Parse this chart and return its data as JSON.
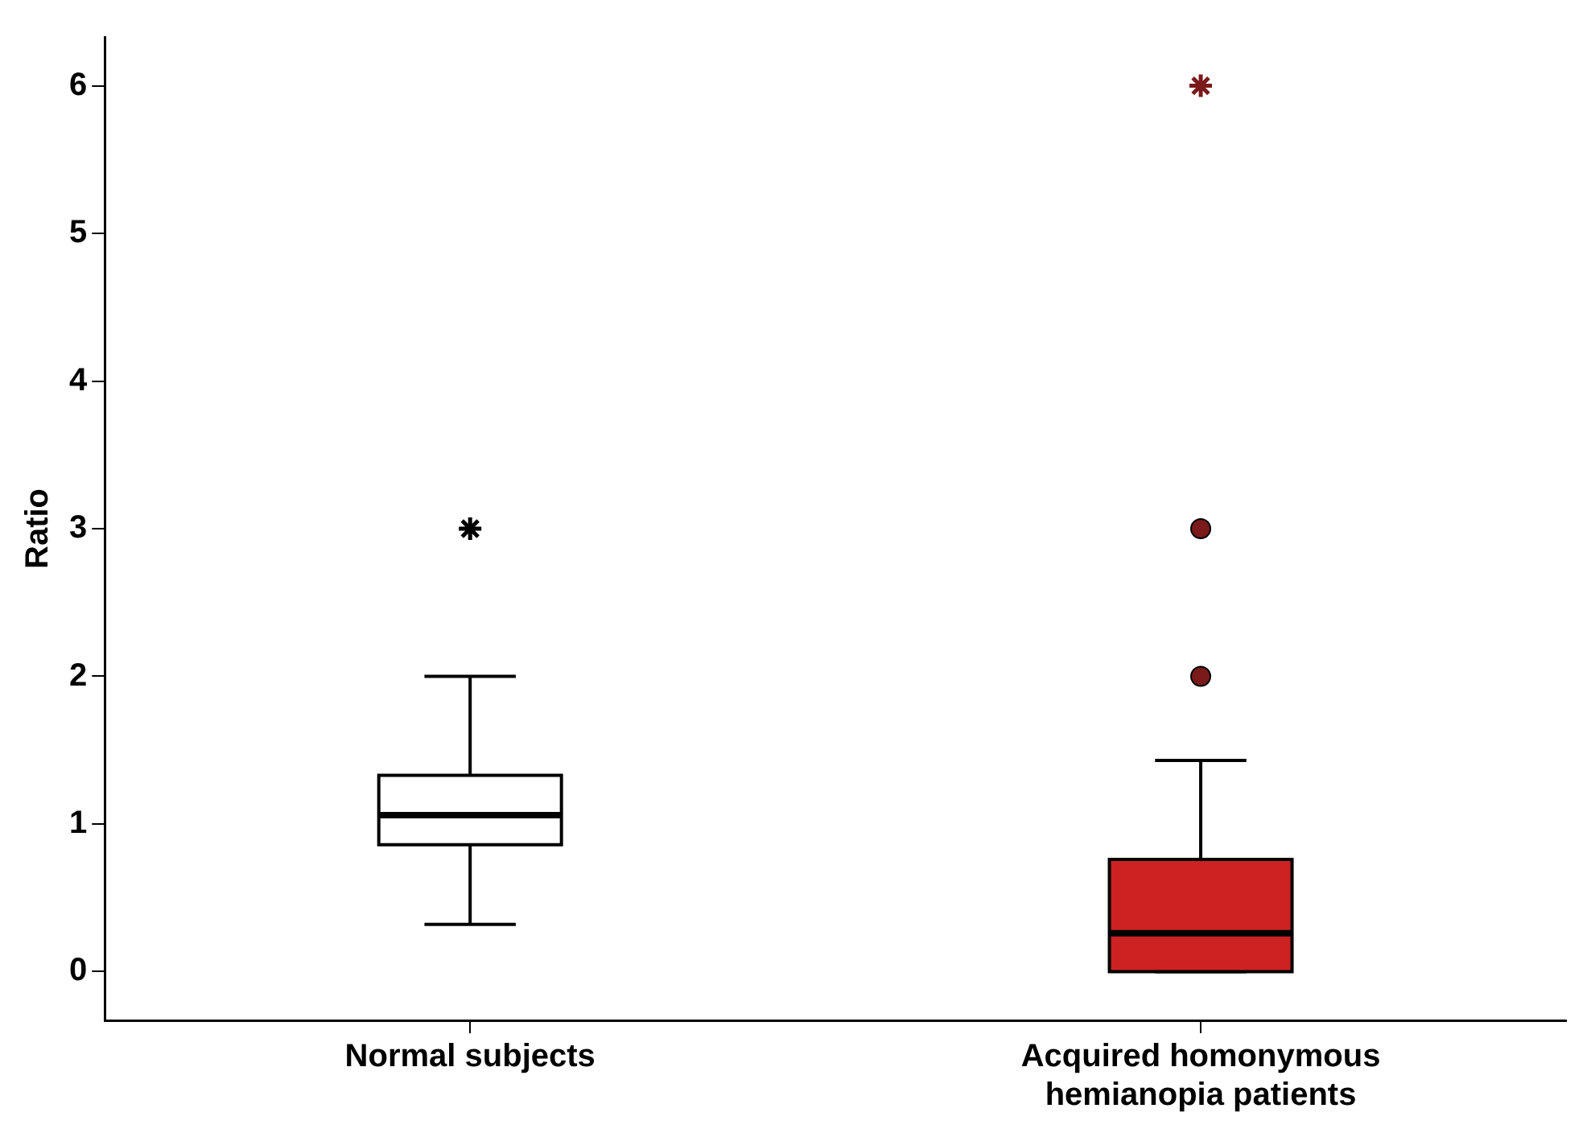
{
  "chart_data": {
    "type": "box",
    "ylabel": "Ratio",
    "categories": [
      "Normal subjects",
      "Acquired homonymous hemianopia patients"
    ],
    "boxes": [
      {
        "low": 0.32,
        "q1": 0.86,
        "median": 1.06,
        "q3": 1.33,
        "high": 2.0
      },
      {
        "low": 0,
        "q1": 0,
        "median": 0.26,
        "q3": 0.76,
        "high": 1.43
      }
    ],
    "colors": [
      "#ffffff",
      "#cc2222"
    ],
    "ylim": [
      -0.33,
      6.33
    ],
    "yticks": [
      0,
      1,
      2,
      3,
      4,
      5,
      6
    ],
    "grid": false,
    "legend": false,
    "series": [
      {
        "type": "scatter",
        "marker": "cross",
        "x": [
          "Normal subjects",
          "Acquired homonymous hemianopia patients"
        ],
        "values": [
          3,
          6
        ],
        "colors": [
          "#000000",
          "#7a1a1a"
        ]
      },
      {
        "type": "scatter",
        "marker": "circle",
        "x": [
          "Acquired homonymous hemianopia patients",
          "Acquired homonymous hemianopia patients"
        ],
        "values": [
          2,
          3
        ],
        "color": "#7a1a1a"
      }
    ]
  }
}
